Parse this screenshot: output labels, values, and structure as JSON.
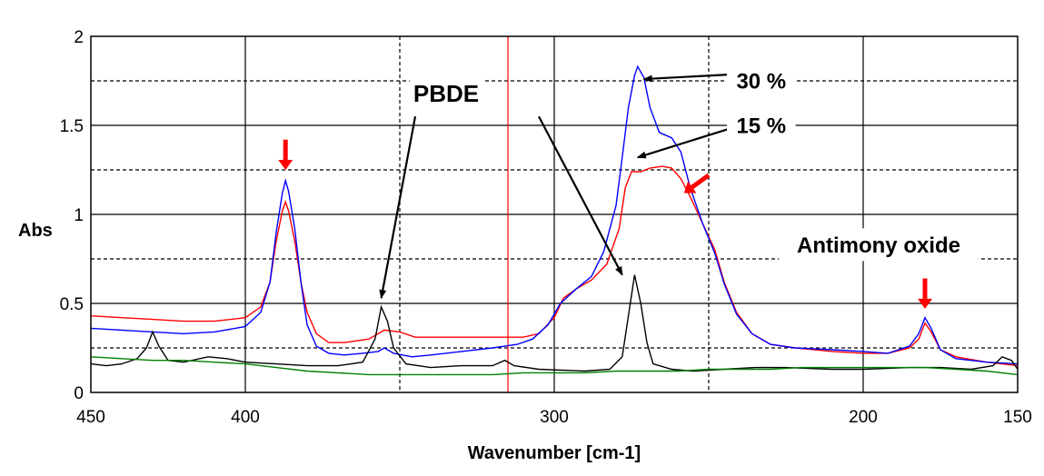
{
  "chart_data": {
    "type": "line",
    "xlabel": "Wavenumber [cm-1]",
    "ylabel": "Abs",
    "xlim": [
      450,
      150
    ],
    "ylim": [
      0,
      2
    ],
    "x_ticks": [
      450,
      400,
      300,
      200,
      150
    ],
    "y_ticks": [
      0,
      0.5,
      1,
      1.5,
      2
    ],
    "grid": true,
    "reversed_x": true,
    "marker_line_x": 315,
    "series": [
      {
        "color": "#ff0000",
        "points": [
          [
            450,
            0.43
          ],
          [
            440,
            0.42
          ],
          [
            430,
            0.41
          ],
          [
            420,
            0.4
          ],
          [
            410,
            0.4
          ],
          [
            400,
            0.42
          ],
          [
            395,
            0.48
          ],
          [
            392,
            0.62
          ],
          [
            390,
            0.85
          ],
          [
            388,
            1.02
          ],
          [
            387,
            1.07
          ],
          [
            386,
            1.02
          ],
          [
            384,
            0.85
          ],
          [
            382,
            0.62
          ],
          [
            380,
            0.45
          ],
          [
            377,
            0.33
          ],
          [
            373,
            0.28
          ],
          [
            368,
            0.28
          ],
          [
            360,
            0.3
          ],
          [
            355,
            0.35
          ],
          [
            350,
            0.34
          ],
          [
            345,
            0.31
          ],
          [
            340,
            0.31
          ],
          [
            330,
            0.31
          ],
          [
            320,
            0.31
          ],
          [
            310,
            0.31
          ],
          [
            305,
            0.33
          ],
          [
            300,
            0.42
          ],
          [
            297,
            0.53
          ],
          [
            293,
            0.58
          ],
          [
            288,
            0.63
          ],
          [
            283,
            0.72
          ],
          [
            279,
            0.92
          ],
          [
            277,
            1.15
          ],
          [
            275,
            1.24
          ],
          [
            272,
            1.24
          ],
          [
            269,
            1.26
          ],
          [
            265,
            1.27
          ],
          [
            262,
            1.26
          ],
          [
            259,
            1.2
          ],
          [
            256,
            1.1
          ],
          [
            252,
            0.95
          ],
          [
            248,
            0.8
          ],
          [
            245,
            0.62
          ],
          [
            241,
            0.45
          ],
          [
            236,
            0.33
          ],
          [
            230,
            0.27
          ],
          [
            222,
            0.25
          ],
          [
            210,
            0.23
          ],
          [
            200,
            0.22
          ],
          [
            192,
            0.22
          ],
          [
            185,
            0.25
          ],
          [
            182,
            0.3
          ],
          [
            180,
            0.39
          ],
          [
            178,
            0.34
          ],
          [
            175,
            0.24
          ],
          [
            170,
            0.2
          ],
          [
            160,
            0.17
          ],
          [
            150,
            0.15
          ]
        ]
      },
      {
        "color": "#0000ff",
        "points": [
          [
            450,
            0.36
          ],
          [
            440,
            0.35
          ],
          [
            430,
            0.34
          ],
          [
            420,
            0.33
          ],
          [
            410,
            0.34
          ],
          [
            400,
            0.37
          ],
          [
            395,
            0.45
          ],
          [
            392,
            0.62
          ],
          [
            390,
            0.9
          ],
          [
            388,
            1.12
          ],
          [
            387,
            1.19
          ],
          [
            386,
            1.13
          ],
          [
            384,
            0.92
          ],
          [
            382,
            0.62
          ],
          [
            380,
            0.38
          ],
          [
            377,
            0.26
          ],
          [
            373,
            0.22
          ],
          [
            368,
            0.21
          ],
          [
            362,
            0.22
          ],
          [
            357,
            0.23
          ],
          [
            355,
            0.25
          ],
          [
            352,
            0.22
          ],
          [
            346,
            0.2
          ],
          [
            340,
            0.21
          ],
          [
            330,
            0.23
          ],
          [
            320,
            0.25
          ],
          [
            312,
            0.27
          ],
          [
            307,
            0.3
          ],
          [
            302,
            0.38
          ],
          [
            298,
            0.5
          ],
          [
            293,
            0.58
          ],
          [
            288,
            0.65
          ],
          [
            284,
            0.79
          ],
          [
            280,
            1.05
          ],
          [
            278,
            1.32
          ],
          [
            276,
            1.6
          ],
          [
            274,
            1.78
          ],
          [
            273,
            1.83
          ],
          [
            271,
            1.77
          ],
          [
            269,
            1.6
          ],
          [
            266,
            1.46
          ],
          [
            262,
            1.43
          ],
          [
            259,
            1.35
          ],
          [
            256,
            1.15
          ],
          [
            252,
            0.95
          ],
          [
            248,
            0.78
          ],
          [
            245,
            0.61
          ],
          [
            241,
            0.44
          ],
          [
            236,
            0.33
          ],
          [
            230,
            0.27
          ],
          [
            222,
            0.25
          ],
          [
            210,
            0.24
          ],
          [
            200,
            0.23
          ],
          [
            192,
            0.22
          ],
          [
            185,
            0.26
          ],
          [
            182,
            0.33
          ],
          [
            180,
            0.42
          ],
          [
            178,
            0.36
          ],
          [
            175,
            0.24
          ],
          [
            170,
            0.19
          ],
          [
            160,
            0.17
          ],
          [
            150,
            0.16
          ]
        ]
      },
      {
        "color": "#000000",
        "points": [
          [
            450,
            0.16
          ],
          [
            445,
            0.15
          ],
          [
            440,
            0.16
          ],
          [
            435,
            0.19
          ],
          [
            432,
            0.25
          ],
          [
            430,
            0.34
          ],
          [
            428,
            0.26
          ],
          [
            425,
            0.18
          ],
          [
            420,
            0.17
          ],
          [
            412,
            0.2
          ],
          [
            406,
            0.19
          ],
          [
            400,
            0.17
          ],
          [
            390,
            0.16
          ],
          [
            380,
            0.15
          ],
          [
            370,
            0.15
          ],
          [
            362,
            0.17
          ],
          [
            358,
            0.3
          ],
          [
            356,
            0.48
          ],
          [
            354,
            0.4
          ],
          [
            352,
            0.25
          ],
          [
            348,
            0.16
          ],
          [
            340,
            0.14
          ],
          [
            330,
            0.15
          ],
          [
            320,
            0.15
          ],
          [
            316,
            0.18
          ],
          [
            313,
            0.15
          ],
          [
            305,
            0.13
          ],
          [
            290,
            0.12
          ],
          [
            282,
            0.13
          ],
          [
            278,
            0.2
          ],
          [
            276,
            0.43
          ],
          [
            274,
            0.66
          ],
          [
            272,
            0.5
          ],
          [
            270,
            0.28
          ],
          [
            268,
            0.16
          ],
          [
            262,
            0.13
          ],
          [
            255,
            0.12
          ],
          [
            245,
            0.13
          ],
          [
            235,
            0.14
          ],
          [
            225,
            0.14
          ],
          [
            210,
            0.13
          ],
          [
            200,
            0.13
          ],
          [
            185,
            0.14
          ],
          [
            175,
            0.14
          ],
          [
            165,
            0.13
          ],
          [
            158,
            0.15
          ],
          [
            155,
            0.2
          ],
          [
            152,
            0.18
          ],
          [
            150,
            0.13
          ]
        ]
      },
      {
        "color": "#008000",
        "points": [
          [
            450,
            0.2
          ],
          [
            440,
            0.19
          ],
          [
            430,
            0.18
          ],
          [
            420,
            0.18
          ],
          [
            410,
            0.17
          ],
          [
            400,
            0.16
          ],
          [
            390,
            0.14
          ],
          [
            380,
            0.12
          ],
          [
            370,
            0.11
          ],
          [
            360,
            0.1
          ],
          [
            350,
            0.1
          ],
          [
            340,
            0.1
          ],
          [
            330,
            0.1
          ],
          [
            320,
            0.1
          ],
          [
            310,
            0.11
          ],
          [
            300,
            0.11
          ],
          [
            290,
            0.11
          ],
          [
            280,
            0.12
          ],
          [
            270,
            0.12
          ],
          [
            260,
            0.12
          ],
          [
            250,
            0.13
          ],
          [
            240,
            0.13
          ],
          [
            230,
            0.13
          ],
          [
            220,
            0.14
          ],
          [
            210,
            0.14
          ],
          [
            200,
            0.14
          ],
          [
            190,
            0.14
          ],
          [
            180,
            0.14
          ],
          [
            170,
            0.13
          ],
          [
            160,
            0.12
          ],
          [
            150,
            0.1
          ]
        ]
      }
    ],
    "annotations": [
      {
        "text": "PBDE",
        "x": 335,
        "y": 1.68,
        "size": 26
      },
      {
        "text": "30 %",
        "x": 233,
        "y": 1.75,
        "size": 24
      },
      {
        "text": "15 %",
        "x": 233,
        "y": 1.5,
        "size": 24
      },
      {
        "text": "Antimony oxide",
        "x": 195,
        "y": 0.83,
        "size": 24
      }
    ],
    "arrows": [
      {
        "color": "#000000",
        "from": [
          345,
          1.55
        ],
        "to": [
          356,
          0.53
        ]
      },
      {
        "color": "#000000",
        "from": [
          305,
          1.55
        ],
        "to": [
          278,
          0.66
        ]
      },
      {
        "color": "#000000",
        "from": [
          238,
          1.79
        ],
        "to": [
          271,
          1.76
        ]
      },
      {
        "color": "#000000",
        "from": [
          238,
          1.51
        ],
        "to": [
          273,
          1.32
        ]
      }
    ],
    "red_arrows": [
      {
        "from": [
          387,
          1.42
        ],
        "to": [
          387,
          1.25
        ]
      },
      {
        "from": [
          250,
          1.22
        ],
        "to": [
          258,
          1.12
        ]
      },
      {
        "from": [
          180,
          0.64
        ],
        "to": [
          180,
          0.47
        ]
      }
    ]
  }
}
